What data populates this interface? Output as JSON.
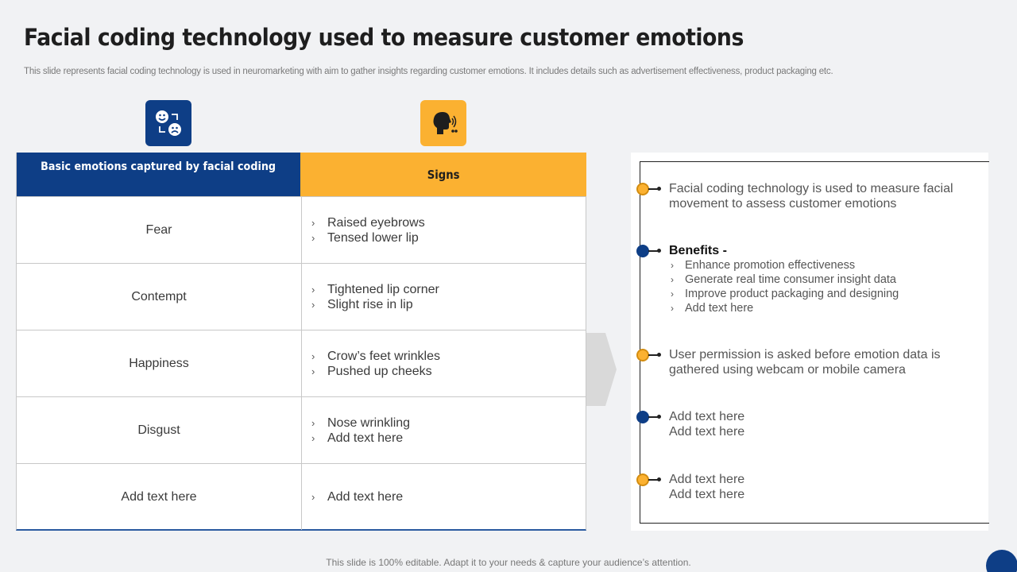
{
  "title": "Facial coding technology used to measure customer emotions",
  "subtitle": "This slide represents facial coding technology is used in neuromarketing with aim to gather insights regarding customer emotions. It includes details such as advertisement effectiveness, product packaging etc.",
  "icons": {
    "left": "emotions-faces-icon",
    "right": "face-scan-icon"
  },
  "colors": {
    "blue": "#0e3e86",
    "yellow": "#fbb131"
  },
  "table": {
    "header_left": "Basic emotions captured by facial coding",
    "header_right": "Signs",
    "rows": [
      {
        "emotion": "Fear",
        "signs": [
          "Raised eyebrows",
          "Tensed lower lip"
        ]
      },
      {
        "emotion": "Contempt",
        "signs": [
          "Tightened lip corner",
          "Slight rise in lip"
        ]
      },
      {
        "emotion": "Happiness",
        "signs": [
          "Crow’s feet wrinkles",
          "Pushed up cheeks"
        ]
      },
      {
        "emotion": "Disgust",
        "signs": [
          "Nose wrinkling",
          "Add text here"
        ]
      },
      {
        "emotion": "Add text here",
        "signs": [
          "Add text here"
        ]
      }
    ]
  },
  "timeline": {
    "item1": [
      "Facial coding technology  is used to measure facial",
      "movement to assess customer emotions"
    ],
    "benefits_title": "Benefits -",
    "benefits": [
      "Enhance promotion effectiveness",
      "Generate real time consumer insight data",
      "Improve product packaging and designing",
      "Add text here"
    ],
    "item3": [
      "User permission is asked before emotion data is",
      "gathered using webcam or mobile camera"
    ],
    "item4": [
      "Add text here",
      "Add text here"
    ],
    "item5": [
      "Add text here",
      "Add text here"
    ]
  },
  "footer": "This slide is 100% editable. Adapt it to your needs & capture your audience’s attention."
}
